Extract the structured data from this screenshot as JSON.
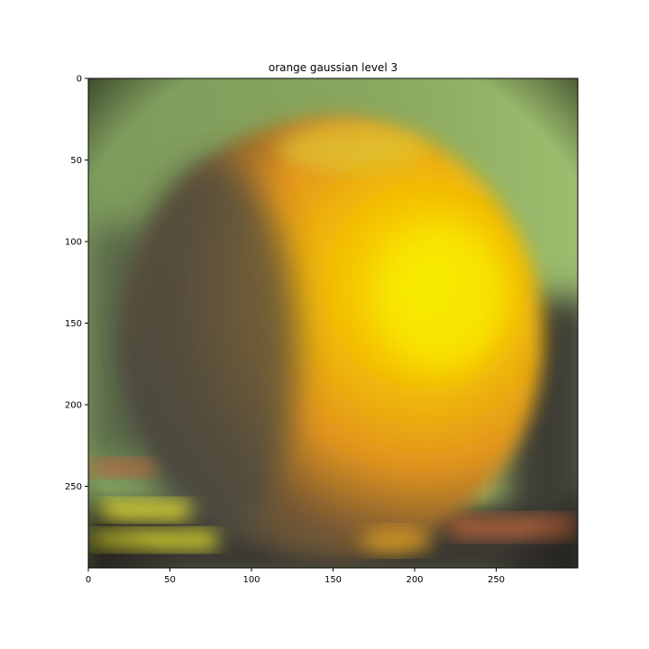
{
  "title": "orange gaussian level 3",
  "image": {
    "description_icon": "blurred-orange-photo",
    "x_range": [
      0,
      300
    ],
    "y_range": [
      0,
      300
    ]
  },
  "axes": {
    "x_ticks": [
      "0",
      "50",
      "100",
      "150",
      "200",
      "250"
    ],
    "x_values": [
      0,
      50,
      100,
      150,
      200,
      250
    ],
    "y_ticks": [
      "0",
      "50",
      "100",
      "150",
      "200",
      "250"
    ],
    "y_values": [
      0,
      50,
      100,
      150,
      200,
      250
    ]
  },
  "colors": {
    "background_green": "#8fae62",
    "orange_bright": "#f5c800",
    "orange_mid": "#e2951e",
    "shadow_dark": "#4a4840",
    "table_dark": "#3d3a34",
    "stripe_yellow": "#d4d030",
    "stripe_red": "#c0603a"
  }
}
